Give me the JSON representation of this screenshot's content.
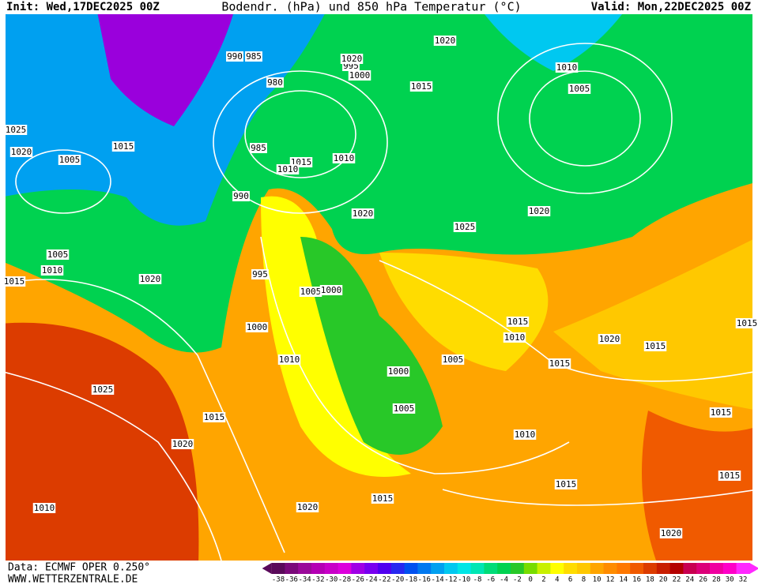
{
  "header": {
    "init": "Init: Wed,17DEC2025 00Z",
    "title": "Bodendr. (hPa) und 850 hPa Temperatur (°C)",
    "valid": "Valid: Mon,22DEC2025 00Z"
  },
  "footer": {
    "data": "Data: ECMWF OPER 0.250°",
    "site": "WWW.WETTERZENTRALE.DE"
  },
  "colorbar": {
    "ticks": [
      -38,
      -36,
      -34,
      -32,
      -30,
      -28,
      -26,
      -24,
      -22,
      -20,
      -18,
      -16,
      -14,
      -12,
      -10,
      -8,
      -6,
      -4,
      -2,
      0,
      2,
      4,
      6,
      8,
      10,
      12,
      14,
      16,
      18,
      20,
      22,
      24,
      26,
      28,
      30,
      32
    ],
    "colors": [
      "#5a0a5a",
      "#7a0a7a",
      "#9a0a9a",
      "#b400b4",
      "#c800c8",
      "#dc00dc",
      "#a000e6",
      "#7800f0",
      "#5000f0",
      "#2828f0",
      "#0050f0",
      "#0078f0",
      "#00a0f0",
      "#00c8f0",
      "#00e6e6",
      "#00e6b4",
      "#00dc78",
      "#00d250",
      "#28c828",
      "#78dc00",
      "#c8f000",
      "#ffff00",
      "#ffdc00",
      "#ffc800",
      "#ffa500",
      "#ff8c00",
      "#ff7800",
      "#f05a00",
      "#dc3c00",
      "#c81e00",
      "#b40000",
      "#c80050",
      "#dc0078",
      "#f000a0",
      "#ff00c8",
      "#ff28ff"
    ]
  },
  "isobar_labels": [
    "1020",
    "990",
    "985",
    "980",
    "995",
    "1000",
    "1015",
    "1010",
    "1005",
    "1025",
    "1020",
    "1010",
    "1005",
    "1015",
    "985",
    "1015",
    "1010",
    "990",
    "1020",
    "1020",
    "1025",
    "1020",
    "1005",
    "1010",
    "1000",
    "1015",
    "995",
    "1005",
    "1010",
    "1000",
    "1015",
    "1010",
    "1020",
    "1000",
    "1005",
    "1005",
    "1015",
    "1010",
    "1020",
    "1015",
    "1025",
    "1015",
    "1020",
    "1010",
    "1015",
    "1015",
    "1015",
    "1020",
    "1020",
    "1015",
    "1015"
  ]
}
